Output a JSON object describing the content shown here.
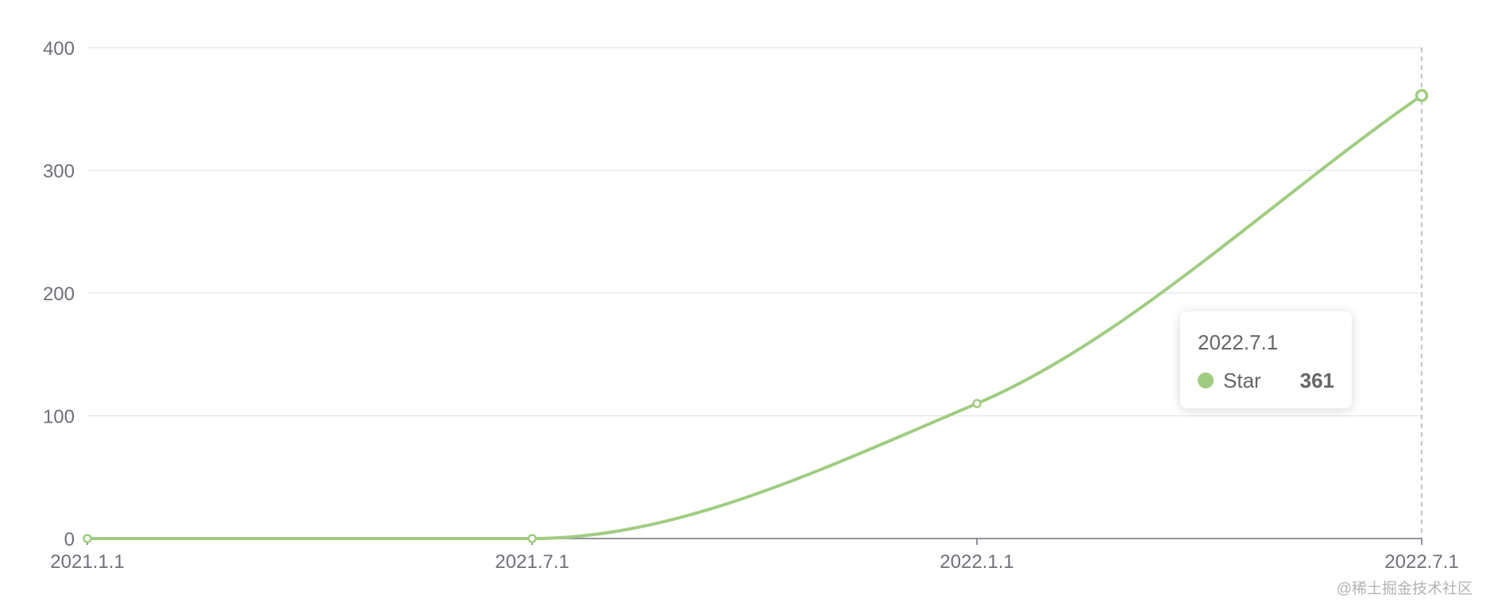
{
  "chart_data": {
    "type": "line",
    "categories": [
      "2021.1.1",
      "2021.7.1",
      "2022.1.1",
      "2022.7.1"
    ],
    "series": [
      {
        "name": "Star",
        "values": [
          0,
          0,
          110,
          361
        ],
        "color": "#a0cc82",
        "smooth": true
      }
    ],
    "ylim": [
      0,
      400
    ],
    "yticks": [
      "0",
      "100",
      "200",
      "300",
      "400"
    ],
    "grid": true,
    "title": "",
    "xlabel": "",
    "ylabel": ""
  },
  "tooltip": {
    "title": "2022.7.1",
    "series_name": "Star",
    "value": "361",
    "marker_color": "#a0cc82",
    "visible": true
  },
  "watermark": "@稀土掘金技术社区"
}
